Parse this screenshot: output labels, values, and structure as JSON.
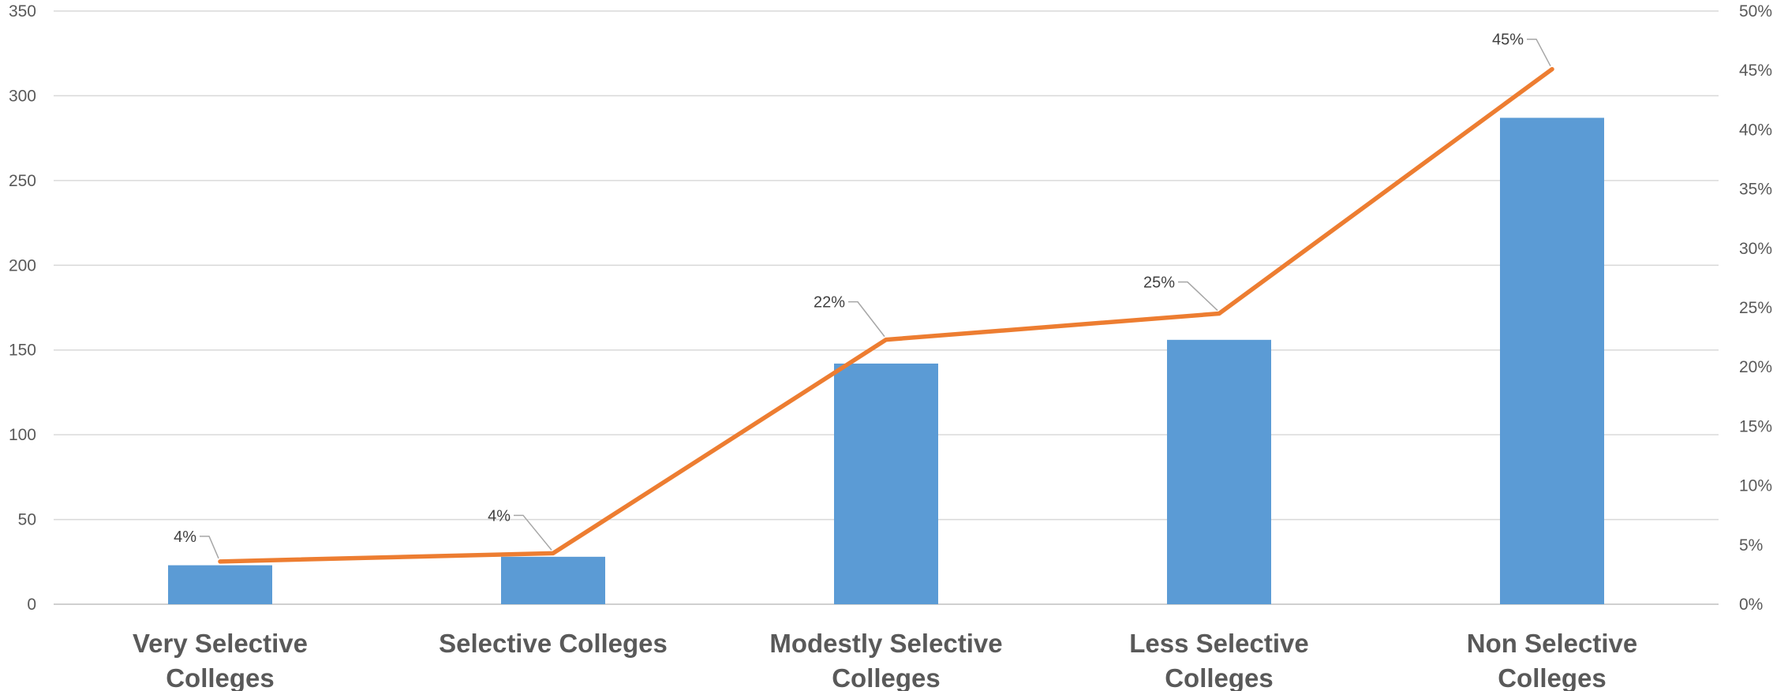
{
  "chart_data": {
    "type": "bar",
    "categories": [
      "Very Selective Colleges",
      "Selective Colleges",
      "Modestly Selective Colleges",
      "Less Selective Colleges",
      "Non Selective Colleges"
    ],
    "series": [
      {
        "type": "bar",
        "axis": "left",
        "values": [
          23,
          28,
          142,
          156,
          287
        ],
        "color": "#5B9BD5"
      },
      {
        "type": "line",
        "axis": "right",
        "values": [
          3.6,
          4.3,
          22.3,
          24.5,
          45.1
        ],
        "data_labels": [
          "4%",
          "4%",
          "22%",
          "25%",
          "45%"
        ],
        "color": "#ED7D31"
      }
    ],
    "ylim_left": [
      0,
      350
    ],
    "yticks_left": [
      "0",
      "50",
      "100",
      "150",
      "200",
      "250",
      "300",
      "350"
    ],
    "ylim_right": [
      0,
      50
    ],
    "yticks_right": [
      "0%",
      "5%",
      "10%",
      "15%",
      "20%",
      "25%",
      "30%",
      "35%",
      "40%",
      "45%",
      "50%"
    ],
    "grid": true,
    "legend": "none"
  }
}
